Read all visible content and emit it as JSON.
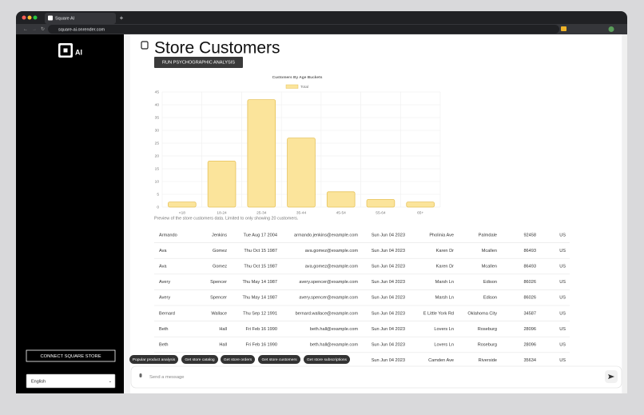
{
  "browser": {
    "tab_title": "Square AI",
    "url": "square-ai.onrender.com"
  },
  "sidebar": {
    "logo": "AI",
    "connect_button": "CONNECT SQUARE STORE",
    "language": "English"
  },
  "main": {
    "title": "Store Customers",
    "analysis_button": "RUN PSYCHOGRAPHIC ANALYSIS",
    "caption": "Preview of the store customers data. Limited to only showing 20 customers."
  },
  "chart_data": {
    "type": "bar",
    "title": "Customers By Age Buckets",
    "categories": [
      "<18",
      "18-24",
      "25-34",
      "35-44",
      "45-54",
      "55-64",
      "65+"
    ],
    "series": [
      {
        "name": "Total",
        "color": "#fbe49b",
        "values": [
          2,
          18,
          42,
          27,
          6,
          3,
          2
        ]
      }
    ],
    "ylim": [
      0,
      45
    ],
    "yticks": [
      0,
      5,
      10,
      15,
      20,
      25,
      30,
      35,
      40,
      45
    ],
    "grid": true
  },
  "table": {
    "rows": [
      [
        "Armando",
        "Jenkins",
        "Tue Aug 17 2004",
        "armando.jenkins@example.com",
        "Sun Jun 04 2023",
        "Pholinia Ave",
        "Palmdale",
        "92458",
        "US"
      ],
      [
        "Ava",
        "Gomez",
        "Thu Oct 15 1987",
        "ava.gomez@example.com",
        "Sun Jun 04 2023",
        "Karen Dr",
        "Mcallen",
        "86493",
        "US"
      ],
      [
        "Ava",
        "Gomez",
        "Thu Oct 15 1987",
        "ava.gomez@example.com",
        "Sun Jun 04 2023",
        "Karen Dr",
        "Mcallen",
        "86493",
        "US"
      ],
      [
        "Avery",
        "Spencer",
        "Thu May 14 1987",
        "avery.spencer@example.com",
        "Sun Jun 04 2023",
        "Marsh Ln",
        "Edison",
        "86026",
        "US"
      ],
      [
        "Avery",
        "Spencer",
        "Thu May 14 1987",
        "avery.spencer@example.com",
        "Sun Jun 04 2023",
        "Marsh Ln",
        "Edison",
        "86026",
        "US"
      ],
      [
        "Bernard",
        "Wallace",
        "Thu Sep 12 1991",
        "bernard.wallace@example.com",
        "Sun Jun 04 2023",
        "E Little York Rd",
        "Oklahoma City",
        "34587",
        "US"
      ],
      [
        "Beth",
        "Hall",
        "Fri Feb 16 1990",
        "beth.hall@example.com",
        "Sun Jun 04 2023",
        "Lovers Ln",
        "Roseburg",
        "28096",
        "US"
      ],
      [
        "Beth",
        "Hall",
        "Fri Feb 16 1990",
        "beth.hall@example.com",
        "Sun Jun 04 2023",
        "Lovers Ln",
        "Roseburg",
        "28096",
        "US"
      ]
    ],
    "partial_row": [
      "Sun Jun 04 2023",
      "Camden Ave",
      "Riverside",
      "35634",
      "US"
    ]
  },
  "suggestions": [
    "Popular product analysis",
    "Get store catalog",
    "Get store orders",
    "Get store customers",
    "Get store subscriptions"
  ],
  "composer": {
    "placeholder": "Send a message"
  }
}
